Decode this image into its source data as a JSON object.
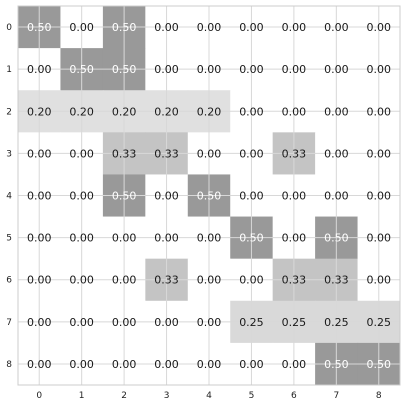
{
  "chart_data": {
    "type": "heatmap",
    "title": "",
    "xlabel": "",
    "ylabel": "",
    "x_ticks": [
      "0",
      "1",
      "2",
      "3",
      "4",
      "5",
      "6",
      "7",
      "8"
    ],
    "y_ticks": [
      "0",
      "1",
      "2",
      "3",
      "4",
      "5",
      "6",
      "7",
      "8"
    ],
    "grid": true,
    "colormap": "greys",
    "values": [
      [
        0.5,
        0.0,
        0.5,
        0.0,
        0.0,
        0.0,
        0.0,
        0.0,
        0.0
      ],
      [
        0.0,
        0.5,
        0.5,
        0.0,
        0.0,
        0.0,
        0.0,
        0.0,
        0.0
      ],
      [
        0.2,
        0.2,
        0.2,
        0.2,
        0.2,
        0.0,
        0.0,
        0.0,
        0.0
      ],
      [
        0.0,
        0.0,
        0.33,
        0.33,
        0.0,
        0.0,
        0.33,
        0.0,
        0.0
      ],
      [
        0.0,
        0.0,
        0.5,
        0.0,
        0.5,
        0.0,
        0.0,
        0.0,
        0.0
      ],
      [
        0.0,
        0.0,
        0.0,
        0.0,
        0.0,
        0.5,
        0.0,
        0.5,
        0.0
      ],
      [
        0.0,
        0.0,
        0.0,
        0.33,
        0.0,
        0.0,
        0.33,
        0.33,
        0.0
      ],
      [
        0.0,
        0.0,
        0.0,
        0.0,
        0.0,
        0.25,
        0.25,
        0.25,
        0.25
      ],
      [
        0.0,
        0.0,
        0.0,
        0.0,
        0.0,
        0.0,
        0.0,
        0.5,
        0.5
      ]
    ],
    "cell_labels": [
      [
        "0.50",
        "0.00",
        "0.50",
        "0.00",
        "0.00",
        "0.00",
        "0.00",
        "0.00",
        "0.00"
      ],
      [
        "0.00",
        "0.50",
        "0.50",
        "0.00",
        "0.00",
        "0.00",
        "0.00",
        "0.00",
        "0.00"
      ],
      [
        "0.20",
        "0.20",
        "0.20",
        "0.20",
        "0.20",
        "0.00",
        "0.00",
        "0.00",
        "0.00"
      ],
      [
        "0.00",
        "0.00",
        "0.33",
        "0.33",
        "0.00",
        "0.00",
        "0.33",
        "0.00",
        "0.00"
      ],
      [
        "0.00",
        "0.00",
        "0.50",
        "0.00",
        "0.50",
        "0.00",
        "0.00",
        "0.00",
        "0.00"
      ],
      [
        "0.00",
        "0.00",
        "0.00",
        "0.00",
        "0.00",
        "0.50",
        "0.00",
        "0.50",
        "0.00"
      ],
      [
        "0.00",
        "0.00",
        "0.00",
        "0.33",
        "0.00",
        "0.00",
        "0.33",
        "0.33",
        "0.00"
      ],
      [
        "0.00",
        "0.00",
        "0.00",
        "0.00",
        "0.00",
        "0.25",
        "0.25",
        "0.25",
        "0.25"
      ],
      [
        "0.00",
        "0.00",
        "0.00",
        "0.00",
        "0.00",
        "0.00",
        "0.00",
        "0.50",
        "0.50"
      ]
    ],
    "colors": {
      "0.50": "#999999",
      "0.33": "#c4c4c4",
      "0.25": "#d9d9d9",
      "0.20": "#e0e0e0",
      "0.00": "#ffffff",
      "grid": "#d8d8d8",
      "frame": "#cccccc",
      "text_dark": "#1a1a1a",
      "text_light": "#ffffff"
    }
  }
}
